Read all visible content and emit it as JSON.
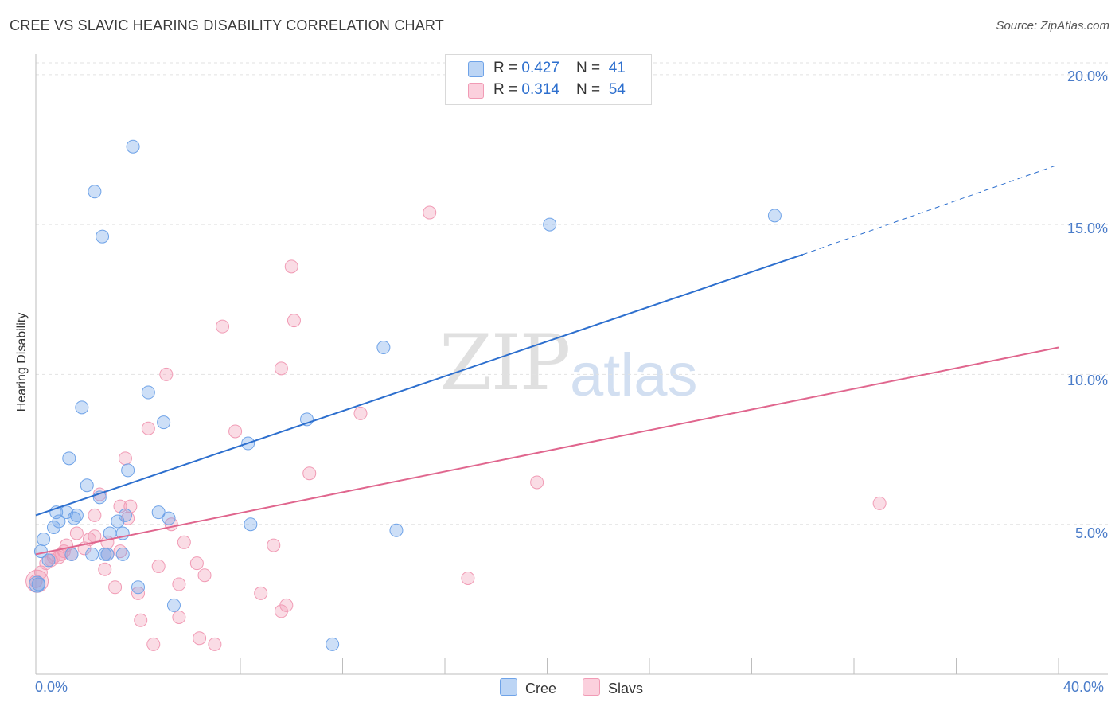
{
  "header": {
    "title": "CREE VS SLAVIC HEARING DISABILITY CORRELATION CHART",
    "source": "Source: ZipAtlas.com"
  },
  "legend": {
    "cree": {
      "r_label": "R = ",
      "r_value": "0.427",
      "n_label": "N = ",
      "n_value": "41"
    },
    "slavs": {
      "r_label": "R = ",
      "r_value": "0.314",
      "n_label": "N = ",
      "n_value": "54"
    }
  },
  "bottom_legend": {
    "cree": "Cree",
    "slavs": "Slavs"
  },
  "watermark": {
    "zip": "ZIP",
    "atlas": "atlas"
  },
  "colors": {
    "cree": "#6fa3e8",
    "cree_line": "#2d6fce",
    "slavs": "#f19bb5",
    "slavs_line": "#e0668e",
    "axis_text": "#4a7cc9"
  },
  "chart_data": {
    "type": "scatter",
    "title": "CREE VS SLAVIC HEARING DISABILITY CORRELATION CHART",
    "xlabel": "",
    "ylabel": "Hearing Disability",
    "xlim": [
      0,
      40
    ],
    "ylim": [
      0,
      20.5
    ],
    "x_tick_labels": [
      "0.0%",
      "40.0%"
    ],
    "y_tick_labels": [
      "5.0%",
      "10.0%",
      "15.0%",
      "20.0%"
    ],
    "y_ticks": [
      5,
      10,
      15,
      20
    ],
    "grid": "horizontal dashed",
    "legend_position": "top-center",
    "series": [
      {
        "name": "Cree",
        "points": [
          [
            3.8,
            17.6
          ],
          [
            2.3,
            16.1
          ],
          [
            2.6,
            14.6
          ],
          [
            20.1,
            15.0
          ],
          [
            28.9,
            15.3
          ],
          [
            13.6,
            10.9
          ],
          [
            4.4,
            9.4
          ],
          [
            1.8,
            8.9
          ],
          [
            5.0,
            8.4
          ],
          [
            10.6,
            8.5
          ],
          [
            1.3,
            7.2
          ],
          [
            8.3,
            7.7
          ],
          [
            3.6,
            6.8
          ],
          [
            2.0,
            6.3
          ],
          [
            2.5,
            5.9
          ],
          [
            0.8,
            5.4
          ],
          [
            1.2,
            5.4
          ],
          [
            1.6,
            5.3
          ],
          [
            4.8,
            5.4
          ],
          [
            5.2,
            5.2
          ],
          [
            3.5,
            5.3
          ],
          [
            0.9,
            5.1
          ],
          [
            1.5,
            5.2
          ],
          [
            3.2,
            5.1
          ],
          [
            8.4,
            5.0
          ],
          [
            0.7,
            4.9
          ],
          [
            2.9,
            4.7
          ],
          [
            3.4,
            4.7
          ],
          [
            14.1,
            4.8
          ],
          [
            0.3,
            4.5
          ],
          [
            0.2,
            4.1
          ],
          [
            1.4,
            4.0
          ],
          [
            2.2,
            4.0
          ],
          [
            2.7,
            4.0
          ],
          [
            2.8,
            4.0
          ],
          [
            3.4,
            4.0
          ],
          [
            0.5,
            3.8
          ],
          [
            4.0,
            2.9
          ],
          [
            5.4,
            2.3
          ],
          [
            11.6,
            1.0
          ],
          [
            0.1,
            3.0
          ]
        ],
        "trend": {
          "x": [
            0,
            30.0
          ],
          "y": [
            5.3,
            14.0
          ],
          "dashed_extension": {
            "x": [
              30.0,
              40.0
            ],
            "y": [
              14.0,
              17.0
            ]
          }
        }
      },
      {
        "name": "Slavs",
        "points": [
          [
            15.4,
            15.4
          ],
          [
            10.0,
            13.6
          ],
          [
            10.1,
            11.8
          ],
          [
            7.3,
            11.6
          ],
          [
            5.1,
            10.0
          ],
          [
            9.6,
            10.2
          ],
          [
            12.7,
            8.7
          ],
          [
            4.4,
            8.2
          ],
          [
            7.8,
            8.1
          ],
          [
            3.5,
            7.2
          ],
          [
            10.7,
            6.7
          ],
          [
            19.6,
            6.4
          ],
          [
            2.5,
            6.0
          ],
          [
            3.3,
            5.6
          ],
          [
            3.7,
            5.6
          ],
          [
            3.6,
            5.2
          ],
          [
            5.3,
            5.0
          ],
          [
            1.6,
            4.7
          ],
          [
            2.3,
            4.6
          ],
          [
            2.1,
            4.5
          ],
          [
            2.8,
            4.4
          ],
          [
            5.8,
            4.4
          ],
          [
            9.3,
            4.3
          ],
          [
            1.2,
            4.3
          ],
          [
            1.9,
            4.2
          ],
          [
            3.3,
            4.1
          ],
          [
            1.0,
            4.0
          ],
          [
            1.4,
            4.0
          ],
          [
            0.9,
            3.9
          ],
          [
            0.6,
            3.8
          ],
          [
            0.4,
            3.7
          ],
          [
            6.3,
            3.7
          ],
          [
            4.8,
            3.6
          ],
          [
            2.7,
            3.5
          ],
          [
            6.6,
            3.3
          ],
          [
            16.9,
            3.2
          ],
          [
            0.2,
            3.4
          ],
          [
            5.6,
            3.0
          ],
          [
            3.1,
            2.9
          ],
          [
            8.8,
            2.7
          ],
          [
            4.0,
            2.7
          ],
          [
            9.8,
            2.3
          ],
          [
            9.6,
            2.1
          ],
          [
            5.6,
            1.9
          ],
          [
            4.1,
            1.8
          ],
          [
            6.4,
            1.2
          ],
          [
            4.6,
            1.0
          ],
          [
            7.0,
            1.0
          ],
          [
            33.0,
            5.7
          ],
          [
            2.3,
            5.3
          ],
          [
            0.0,
            3.1
          ],
          [
            1.1,
            4.1
          ],
          [
            0.7,
            3.9
          ],
          [
            2.8,
            4.0
          ]
        ],
        "trend": {
          "x": [
            0,
            40.0
          ],
          "y": [
            4.0,
            10.9
          ]
        }
      }
    ]
  }
}
